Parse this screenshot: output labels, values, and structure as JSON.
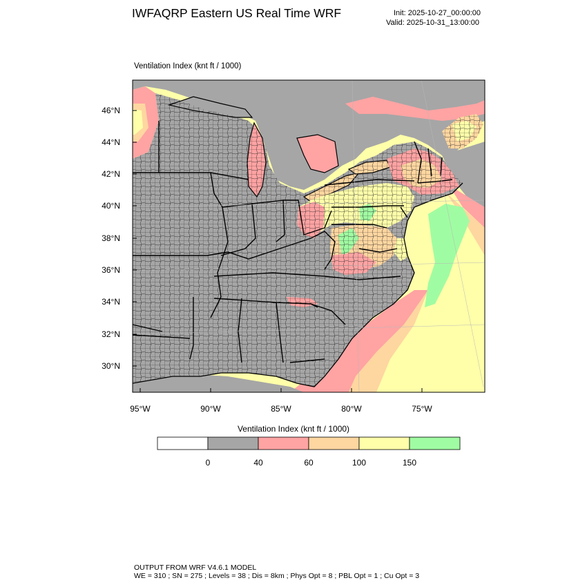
{
  "header": {
    "title": "IWFAQRP Eastern US Real Time WRF",
    "init": "Init: 2025-10-27_00:00:00",
    "valid": "Valid: 2025-10-31_13:00:00"
  },
  "map": {
    "field_label": "Ventilation Index   (knt ft / 1000)",
    "lat_labels": [
      "46°N",
      "44°N",
      "42°N",
      "40°N",
      "38°N",
      "36°N",
      "34°N",
      "32°N",
      "30°N"
    ],
    "lon_labels": [
      "95°W",
      "90°W",
      "85°W",
      "80°W",
      "75°W"
    ],
    "colors": {
      "land_gray": "#a6a6a6",
      "pink": "#ffa3a3",
      "orange": "#fed6a0",
      "yellow": "#ffffaa",
      "green": "#a0fca2",
      "water_gray": "#a6a6a6"
    }
  },
  "colorbar": {
    "title": "Ventilation Index  (knt ft / 1000)",
    "boxes": [
      {
        "color": "#ffffff"
      },
      {
        "color": "#a6a6a6"
      },
      {
        "color": "#ffa3a3"
      },
      {
        "color": "#fed6a0"
      },
      {
        "color": "#ffffaa"
      },
      {
        "color": "#a0fca2"
      }
    ],
    "labels": [
      "0",
      "40",
      "60",
      "100",
      "150"
    ]
  },
  "footer": {
    "line1": "OUTPUT FROM WRF V4.6.1 MODEL",
    "line2": "WE = 310 ; SN = 275 ; Levels = 38 ; Dis = 8km ; Phys Opt = 8 ; PBL Opt = 1 ; Cu Opt = 3"
  }
}
